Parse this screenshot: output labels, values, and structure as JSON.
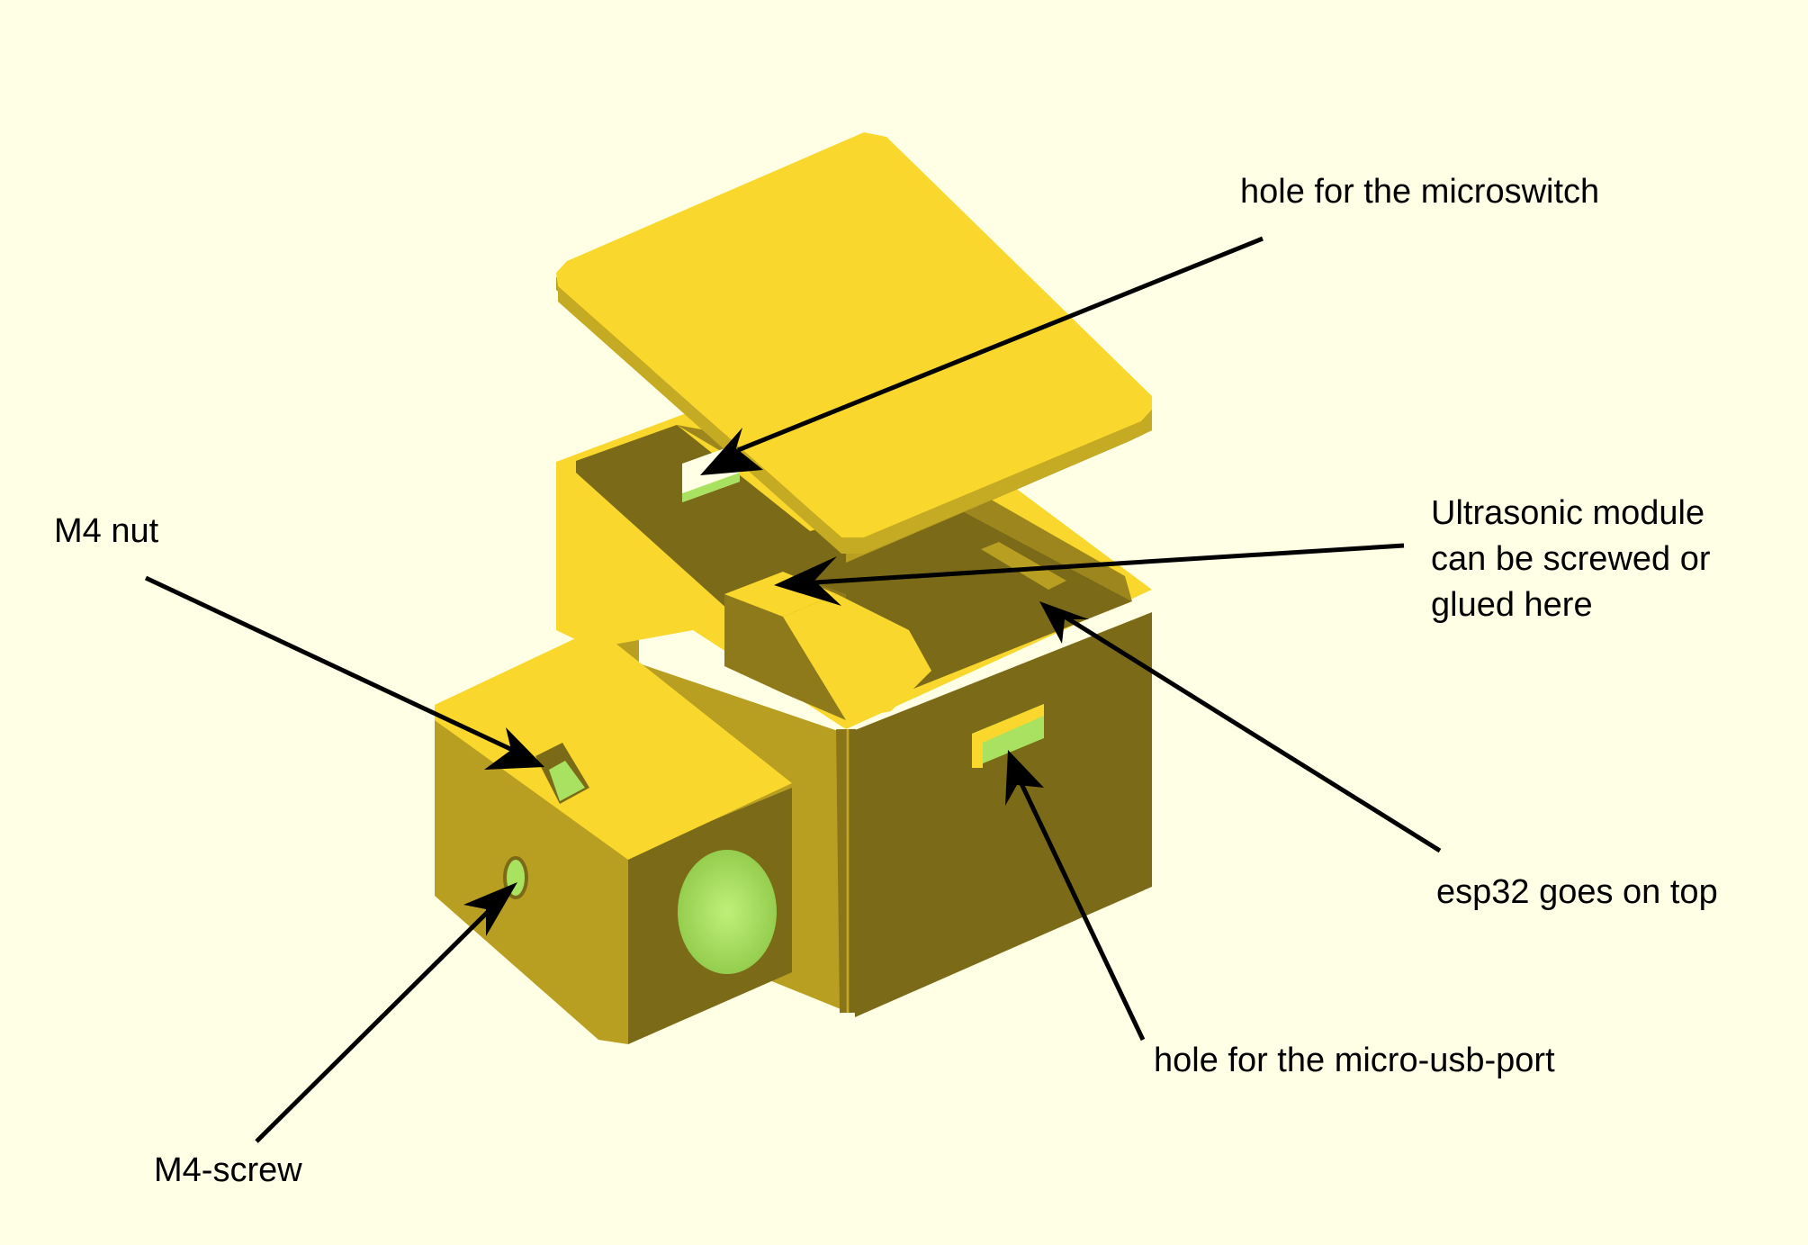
{
  "colors": {
    "background": "#ffffe5",
    "part_top": "#f9d72c",
    "part_side_light": "#b89f22",
    "part_side_dark": "#7b6a17",
    "hole_inside": "#a9e260",
    "arrow": "#000000"
  },
  "annotations": [
    {
      "id": "microswitch-hole",
      "text": "hole for the microswitch"
    },
    {
      "id": "ultrasonic-module",
      "text": "Ultrasonic module\ncan be screwed or\nglued here"
    },
    {
      "id": "m4-nut",
      "text": "M4 nut"
    },
    {
      "id": "esp32",
      "text": "esp32 goes on top"
    },
    {
      "id": "micro-usb-hole",
      "text": "hole for the micro-usb-port"
    },
    {
      "id": "m4-screw",
      "text": "M4-screw"
    }
  ]
}
